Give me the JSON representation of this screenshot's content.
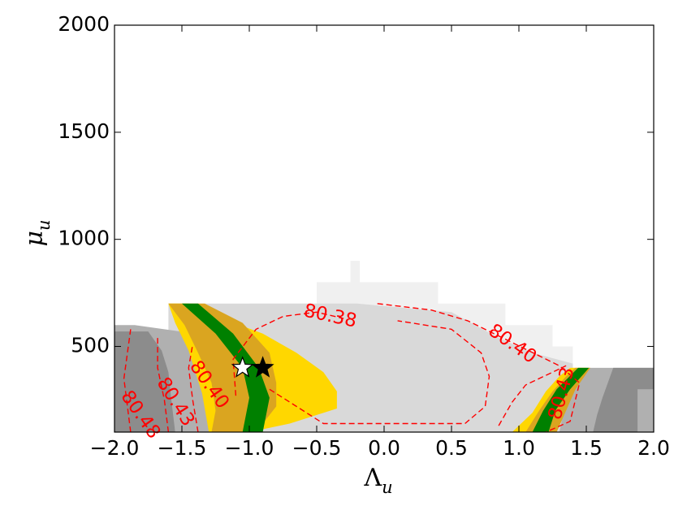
{
  "chart_data": {
    "type": "contour",
    "xlabel": "Λ",
    "xlabel_sub": "u",
    "ylabel": "μ",
    "ylabel_sub": "u",
    "xlim": [
      -2.0,
      2.0
    ],
    "ylim": [
      100,
      2000
    ],
    "xticks": [
      -2.0,
      -1.5,
      -1.0,
      -0.5,
      0.0,
      0.5,
      1.0,
      1.5,
      2.0
    ],
    "xtick_labels": [
      "−2.0",
      "−1.5",
      "−1.0",
      "−0.5",
      "0.0",
      "0.5",
      "1.0",
      "1.5",
      "2.0"
    ],
    "yticks": [
      500,
      1000,
      1500,
      2000
    ],
    "ytick_labels": [
      "500",
      "1000",
      "1500",
      "2000"
    ],
    "grid": false,
    "colors": {
      "very_light_gray": "#f0f0f0",
      "light_gray": "#d9d9d9",
      "mid_gray": "#b0b0b0",
      "dark_gray": "#8c8c8c",
      "yellow": "#ffd700",
      "gold": "#daa520",
      "green": "#008000",
      "contour_red": "#ff0000"
    },
    "filled_regions": [
      {
        "color": "very_light_gray",
        "points": [
          [
            -1.0,
            700
          ],
          [
            -0.5,
            700
          ],
          [
            -0.5,
            800
          ],
          [
            -0.25,
            800
          ],
          [
            -0.25,
            900
          ],
          [
            -0.18,
            900
          ],
          [
            -0.18,
            800
          ],
          [
            0.4,
            800
          ],
          [
            0.4,
            700
          ],
          [
            0.9,
            700
          ],
          [
            0.9,
            600
          ],
          [
            1.25,
            600
          ],
          [
            1.25,
            500
          ],
          [
            1.4,
            500
          ],
          [
            1.4,
            100
          ],
          [
            -1.0,
            100
          ]
        ]
      },
      {
        "color": "light_gray",
        "points": [
          [
            -1.6,
            700
          ],
          [
            -0.2,
            700
          ],
          [
            0.5,
            660
          ],
          [
            0.85,
            540
          ],
          [
            1.1,
            470
          ],
          [
            1.4,
            420
          ],
          [
            1.4,
            100
          ],
          [
            -1.6,
            100
          ]
        ]
      },
      {
        "color": "mid_gray",
        "points": [
          [
            -2.0,
            600
          ],
          [
            -1.85,
            600
          ],
          [
            -1.4,
            560
          ],
          [
            -1.2,
            490
          ],
          [
            -1.1,
            400
          ],
          [
            -1.1,
            100
          ],
          [
            -2.0,
            100
          ]
        ]
      },
      {
        "color": "mid_gray",
        "points": [
          [
            1.4,
            400
          ],
          [
            2.0,
            400
          ],
          [
            2.0,
            100
          ],
          [
            1.3,
            100
          ]
        ]
      },
      {
        "color": "dark_gray",
        "points": [
          [
            -2.0,
            570
          ],
          [
            -1.75,
            570
          ],
          [
            -1.65,
            480
          ],
          [
            -1.6,
            380
          ],
          [
            -1.58,
            260
          ],
          [
            -1.55,
            100
          ],
          [
            -2.0,
            100
          ]
        ]
      },
      {
        "color": "dark_gray",
        "points": [
          [
            1.7,
            400
          ],
          [
            2.0,
            400
          ],
          [
            2.0,
            300
          ],
          [
            1.88,
            300
          ],
          [
            1.88,
            100
          ],
          [
            1.55,
            100
          ],
          [
            1.58,
            180
          ],
          [
            1.62,
            260
          ]
        ]
      },
      {
        "color": "yellow",
        "points": [
          [
            -1.6,
            700
          ],
          [
            -1.45,
            700
          ],
          [
            -1.2,
            630
          ],
          [
            -0.9,
            560
          ],
          [
            -0.65,
            470
          ],
          [
            -0.45,
            380
          ],
          [
            -0.35,
            290
          ],
          [
            -0.35,
            210
          ],
          [
            -0.7,
            140
          ],
          [
            -1.0,
            100
          ],
          [
            -1.3,
            100
          ],
          [
            -1.35,
            280
          ],
          [
            -1.45,
            480
          ],
          [
            -1.55,
            610
          ]
        ]
      },
      {
        "color": "yellow",
        "points": [
          [
            0.95,
            100
          ],
          [
            1.1,
            190
          ],
          [
            1.2,
            290
          ],
          [
            1.3,
            360
          ],
          [
            1.38,
            400
          ],
          [
            1.5,
            400
          ],
          [
            1.35,
            250
          ],
          [
            1.25,
            100
          ]
        ]
      },
      {
        "color": "gold",
        "points": [
          [
            -1.6,
            700
          ],
          [
            -1.33,
            700
          ],
          [
            -1.05,
            610
          ],
          [
            -0.85,
            470
          ],
          [
            -0.8,
            330
          ],
          [
            -0.8,
            220
          ],
          [
            -0.95,
            100
          ],
          [
            -1.28,
            100
          ],
          [
            -1.25,
            200
          ],
          [
            -1.28,
            330
          ],
          [
            -1.38,
            470
          ],
          [
            -1.48,
            600
          ]
        ]
      },
      {
        "color": "gold",
        "points": [
          [
            1.05,
            100
          ],
          [
            1.15,
            200
          ],
          [
            1.25,
            290
          ],
          [
            1.35,
            360
          ],
          [
            1.42,
            400
          ],
          [
            1.53,
            400
          ],
          [
            1.42,
            300
          ],
          [
            1.35,
            200
          ],
          [
            1.28,
            100
          ]
        ]
      },
      {
        "color": "green",
        "points": [
          [
            -1.5,
            700
          ],
          [
            -1.38,
            700
          ],
          [
            -1.12,
            560
          ],
          [
            -0.93,
            400
          ],
          [
            -0.85,
            260
          ],
          [
            -0.9,
            100
          ],
          [
            -1.05,
            100
          ],
          [
            -1.0,
            260
          ],
          [
            -1.05,
            400
          ],
          [
            -1.25,
            560
          ]
        ]
      },
      {
        "color": "green",
        "points": [
          [
            1.1,
            100
          ],
          [
            1.18,
            200
          ],
          [
            1.28,
            300
          ],
          [
            1.44,
            400
          ],
          [
            1.52,
            400
          ],
          [
            1.38,
            300
          ],
          [
            1.27,
            200
          ],
          [
            1.22,
            100
          ]
        ]
      }
    ],
    "contour_lines": [
      {
        "level": "80.38",
        "points": [
          [
            -1.1,
            270
          ],
          [
            -1.12,
            440
          ],
          [
            -0.95,
            580
          ],
          [
            -0.75,
            640
          ],
          [
            -0.5,
            660
          ],
          [
            -0.3,
            630
          ]
        ]
      },
      {
        "level": "80.38",
        "points": [
          [
            -0.85,
            300
          ],
          [
            -0.7,
            240
          ],
          [
            -0.45,
            140
          ],
          [
            0.6,
            140
          ],
          [
            0.75,
            220
          ],
          [
            0.78,
            360
          ],
          [
            0.72,
            470
          ],
          [
            0.5,
            580
          ],
          [
            0.1,
            620
          ]
        ]
      },
      {
        "level": "80.40",
        "points": [
          [
            -1.38,
            100
          ],
          [
            -1.42,
            250
          ],
          [
            -1.45,
            400
          ],
          [
            -1.42,
            510
          ]
        ]
      },
      {
        "level": "80.40",
        "points": [
          [
            -0.05,
            700
          ],
          [
            0.35,
            670
          ],
          [
            0.62,
            620
          ],
          [
            1.3,
            410
          ],
          [
            1.45,
            330
          ],
          [
            1.38,
            150
          ],
          [
            1.2,
            100
          ]
        ]
      },
      {
        "level": "80.43",
        "points": [
          [
            -1.6,
            100
          ],
          [
            -1.63,
            250
          ],
          [
            -1.68,
            400
          ],
          [
            -1.68,
            550
          ]
        ]
      },
      {
        "level": "80.43",
        "points": [
          [
            0.85,
            130
          ],
          [
            0.95,
            240
          ],
          [
            1.05,
            320
          ],
          [
            1.25,
            380
          ],
          [
            1.35,
            410
          ]
        ]
      },
      {
        "level": "80.48",
        "points": [
          [
            -1.88,
            100
          ],
          [
            -1.93,
            350
          ],
          [
            -1.88,
            580
          ]
        ]
      }
    ],
    "contour_labels": [
      {
        "text": "80.38",
        "x": -0.4,
        "y": 640,
        "rotation": 12
      },
      {
        "text": "80.40",
        "x": 0.95,
        "y": 510,
        "rotation": 35
      },
      {
        "text": "80.40",
        "x": -1.3,
        "y": 320,
        "rotation": 55
      },
      {
        "text": "80.43",
        "x": -1.55,
        "y": 240,
        "rotation": 58
      },
      {
        "text": "80.43",
        "x": 1.32,
        "y": 280,
        "rotation": -75
      },
      {
        "text": "80.48",
        "x": -1.81,
        "y": 180,
        "rotation": 55
      }
    ],
    "markers": [
      {
        "name": "white-star",
        "x": -1.05,
        "y": 400,
        "fill": "#ffffff",
        "stroke": "#000000"
      },
      {
        "name": "black-star",
        "x": -0.9,
        "y": 400,
        "fill": "#000000",
        "stroke": "#000000"
      }
    ]
  }
}
